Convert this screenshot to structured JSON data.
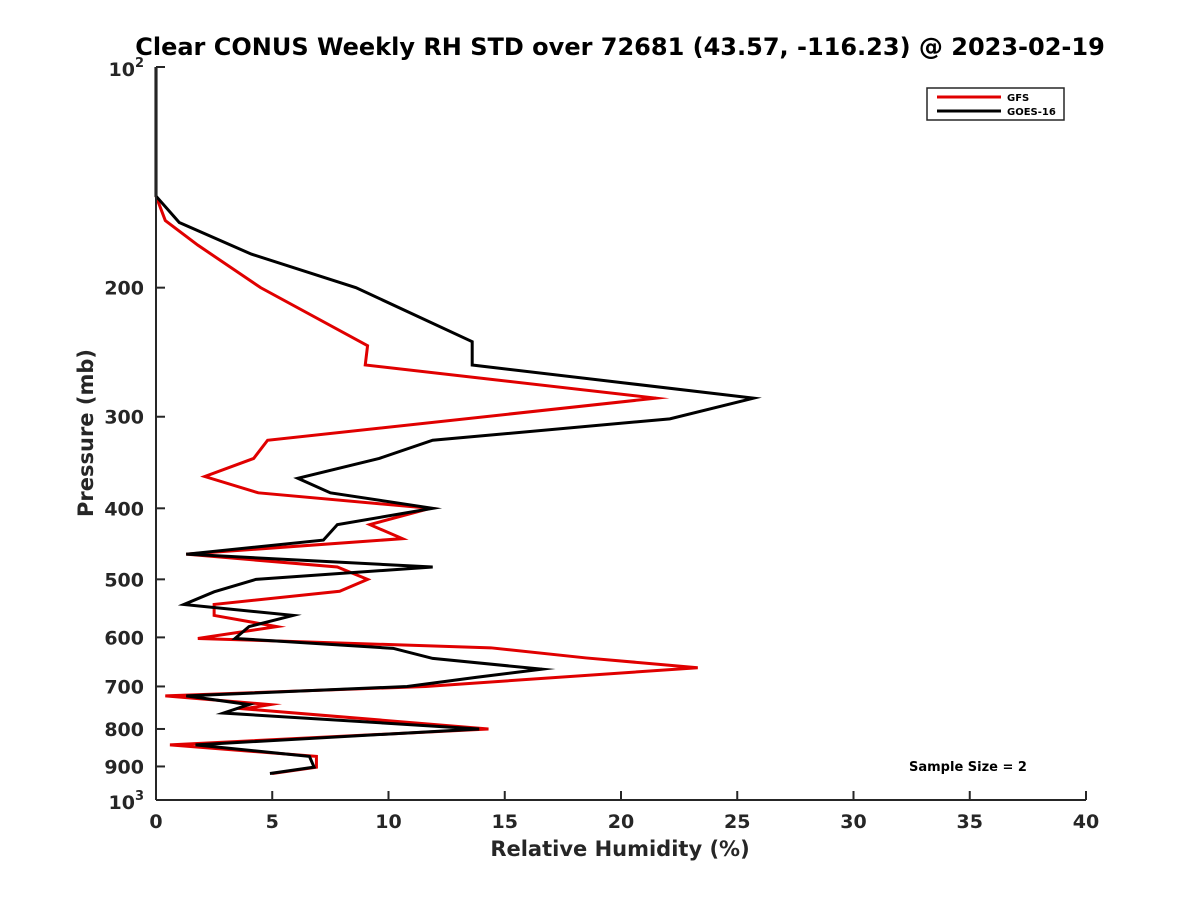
{
  "chart_data": {
    "type": "line",
    "title": "Clear CONUS Weekly RH STD over 72681 (43.57, -116.23) @ 2023-02-19",
    "xlabel": "Relative Humidity (%)",
    "ylabel": "Pressure (mb)",
    "xlim": [
      0,
      40
    ],
    "ylim": [
      100,
      1000
    ],
    "y_scale": "log",
    "y_reversed": true,
    "x_ticks": [
      0,
      5,
      10,
      15,
      20,
      25,
      30,
      35,
      40
    ],
    "x_tick_labels": [
      "0",
      "5",
      "10",
      "15",
      "20",
      "25",
      "30",
      "35",
      "40"
    ],
    "y_ticks": [
      200,
      300,
      400,
      500,
      600,
      700,
      800,
      900
    ],
    "y_tick_labels": [
      "200",
      "300",
      "400",
      "500",
      "600",
      "700",
      "800",
      "900"
    ],
    "y_decade_labels": [
      {
        "value": 100,
        "base": "10",
        "exp": "2"
      },
      {
        "value": 1000,
        "base": "10",
        "exp": "3"
      }
    ],
    "grid": false,
    "legend_position": "top-right",
    "annotation": "Sample Size = 2",
    "series": [
      {
        "name": "GFS",
        "color": "#e00000",
        "points": [
          [
            0,
            100
          ],
          [
            0,
            150
          ],
          [
            0.4,
            162
          ],
          [
            1.8,
            175
          ],
          [
            4.5,
            200
          ],
          [
            9.1,
            240
          ],
          [
            9.0,
            255
          ],
          [
            21.5,
            283
          ],
          [
            4.8,
            323
          ],
          [
            4.2,
            342
          ],
          [
            2.1,
            362
          ],
          [
            4.4,
            381
          ],
          [
            11.8,
            400
          ],
          [
            9.2,
            421
          ],
          [
            10.6,
            440
          ],
          [
            1.3,
            462
          ],
          [
            7.8,
            481
          ],
          [
            9.1,
            500
          ],
          [
            7.9,
            519
          ],
          [
            2.5,
            541
          ],
          [
            2.5,
            560
          ],
          [
            5.2,
            580
          ],
          [
            1.8,
            602
          ],
          [
            14.4,
            620
          ],
          [
            18.5,
            640
          ],
          [
            23.3,
            660
          ],
          [
            11.6,
            700
          ],
          [
            0.4,
            721
          ],
          [
            4.9,
            741
          ],
          [
            3.8,
            751
          ],
          [
            14.3,
            800
          ],
          [
            0.6,
            841
          ],
          [
            6.9,
            872
          ],
          [
            6.9,
            902
          ],
          [
            5.0,
            920
          ]
        ]
      },
      {
        "name": "GOES-16",
        "color": "#000000",
        "points": [
          [
            0,
            100
          ],
          [
            0,
            150
          ],
          [
            1.0,
            163
          ],
          [
            4.1,
            180
          ],
          [
            8.6,
            200
          ],
          [
            13.6,
            237
          ],
          [
            13.6,
            255
          ],
          [
            25.7,
            283
          ],
          [
            22.1,
            302
          ],
          [
            11.9,
            323
          ],
          [
            9.6,
            342
          ],
          [
            6.1,
            364
          ],
          [
            7.5,
            381
          ],
          [
            11.9,
            400
          ],
          [
            7.8,
            421
          ],
          [
            7.2,
            442
          ],
          [
            1.3,
            462
          ],
          [
            11.9,
            481
          ],
          [
            4.3,
            500
          ],
          [
            2.5,
            520
          ],
          [
            1.2,
            541
          ],
          [
            5.9,
            560
          ],
          [
            4.0,
            580
          ],
          [
            3.4,
            602
          ],
          [
            10.2,
            621
          ],
          [
            11.9,
            641
          ],
          [
            16.6,
            663
          ],
          [
            13.8,
            680
          ],
          [
            10.8,
            700
          ],
          [
            1.3,
            721
          ],
          [
            4.0,
            741
          ],
          [
            2.9,
            761
          ],
          [
            13.9,
            800
          ],
          [
            1.7,
            841
          ],
          [
            6.6,
            872
          ],
          [
            6.8,
            902
          ],
          [
            4.9,
            920
          ]
        ]
      }
    ]
  }
}
